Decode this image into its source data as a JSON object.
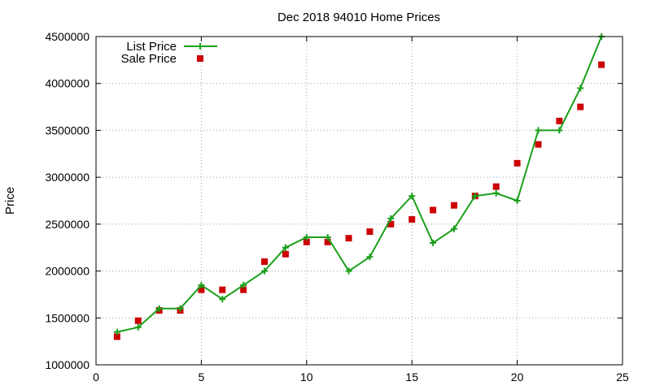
{
  "chart_data": {
    "type": "line",
    "title": "Dec 2018 94010 Home Prices",
    "xlabel": "",
    "ylabel": "Price",
    "xlim": [
      0,
      25
    ],
    "ylim": [
      1000000,
      4500000
    ],
    "xticks": [
      0,
      5,
      10,
      15,
      20,
      25
    ],
    "yticks": [
      1000000,
      1500000,
      2000000,
      2500000,
      3000000,
      3500000,
      4000000,
      4500000
    ],
    "grid": true,
    "legend_position": "top-left",
    "series": [
      {
        "name": "List Price",
        "style": "line-with-plus-markers",
        "color": "#1aa01a",
        "x": [
          1,
          2,
          3,
          4,
          5,
          6,
          7,
          8,
          9,
          10,
          11,
          12,
          13,
          14,
          15,
          16,
          17,
          18,
          19,
          20,
          21,
          22,
          23,
          24
        ],
        "y": [
          1350000,
          1400000,
          1600000,
          1600000,
          1850000,
          1700000,
          1850000,
          2000000,
          2250000,
          2360000,
          2360000,
          2000000,
          2150000,
          2560000,
          2800000,
          2300000,
          2450000,
          2800000,
          2830000,
          2750000,
          3500000,
          3500000,
          3950000,
          4500000
        ]
      },
      {
        "name": "Sale Price",
        "style": "square-markers",
        "color": "#cc0000",
        "x": [
          1,
          2,
          3,
          4,
          5,
          6,
          7,
          8,
          9,
          10,
          11,
          12,
          13,
          14,
          15,
          16,
          17,
          18,
          19,
          20,
          21,
          22,
          23,
          24
        ],
        "y": [
          1300000,
          1470000,
          1580000,
          1580000,
          1800000,
          1800000,
          1800000,
          2100000,
          2180000,
          2310000,
          2310000,
          2350000,
          2420000,
          2500000,
          2550000,
          2650000,
          2700000,
          2800000,
          2900000,
          3150000,
          3350000,
          3600000,
          3750000,
          4200000
        ]
      }
    ]
  }
}
